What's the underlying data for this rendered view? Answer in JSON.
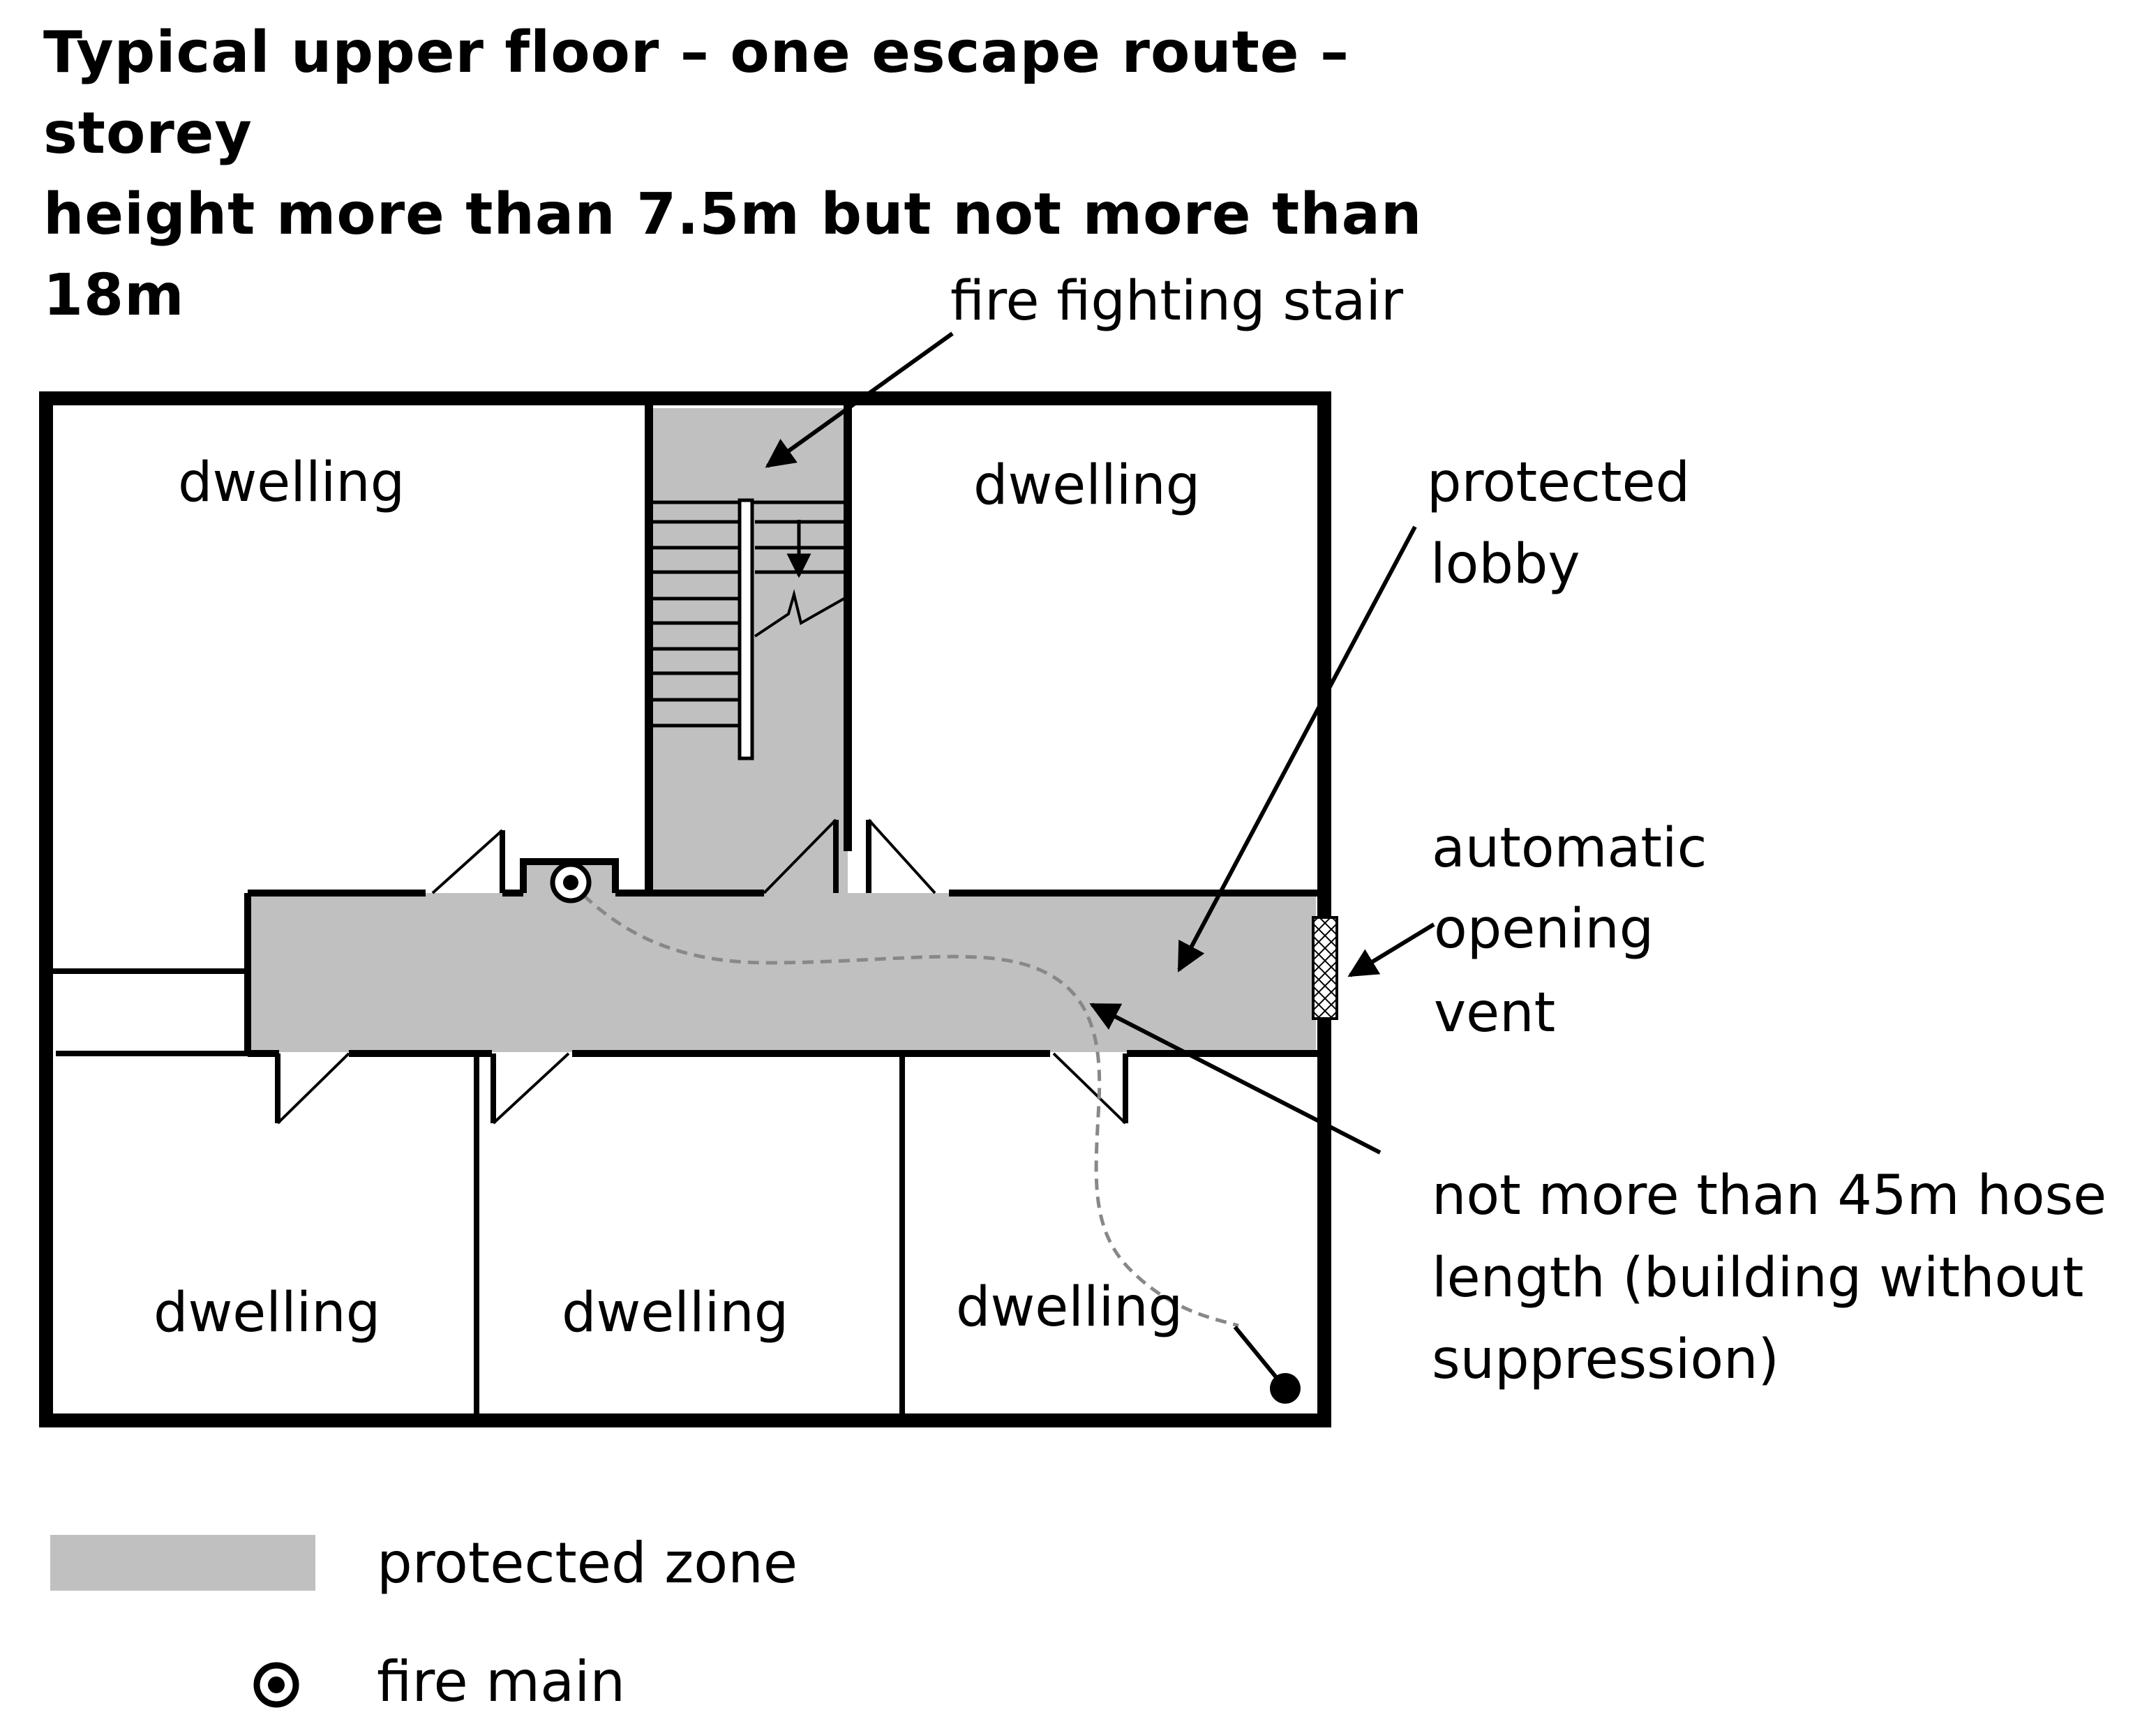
{
  "title": {
    "line1": "Typical upper floor – one escape route – storey",
    "line2": "height more than 7.5m but not more than 18m"
  },
  "rooms": {
    "top_left": "dwelling",
    "top_right": "dwelling",
    "bottom_left": "dwelling",
    "bottom_middle": "dwelling",
    "bottom_right": "dwelling"
  },
  "annotations": {
    "stair": "fire fighting stair",
    "lobby_line1": "protected",
    "lobby_line2": "lobby",
    "vent_line1": "automatic",
    "vent_line2": "opening",
    "vent_line3": "vent",
    "hose_line1": "not more than 45m hose",
    "hose_line2": "length  (building without",
    "hose_line3": "suppression)"
  },
  "legend": {
    "protected_zone": "protected zone",
    "fire_main": "fire main"
  },
  "colors": {
    "protected_zone": "#c0c0c0",
    "walls": "#000000",
    "hose_path": "#888888"
  },
  "icons": {
    "fire_main": "fire-main-icon"
  }
}
